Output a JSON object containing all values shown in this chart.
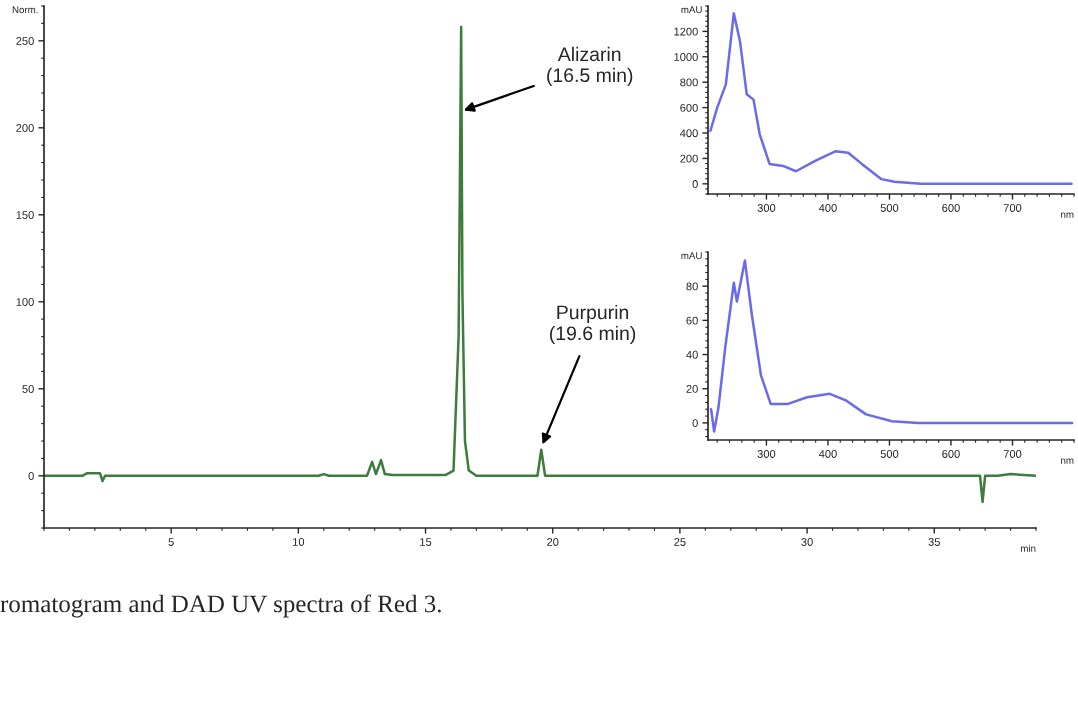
{
  "chart_data": [
    {
      "type": "line",
      "ylabel": "Norm.",
      "xlabel": "min",
      "xlim": [
        0,
        39
      ],
      "ylim": [
        -30,
        270
      ],
      "xticks": [
        5,
        10,
        15,
        20,
        25,
        30,
        35
      ],
      "yticks": [
        0,
        50,
        100,
        150,
        200,
        250
      ],
      "grid": false,
      "legend": false,
      "series": [
        {
          "color": "#3c7d3c",
          "x": [
            0,
            1.5,
            1.7,
            2.2,
            2.3,
            2.4,
            10.8,
            11,
            11.2,
            12.7,
            12.9,
            13.05,
            13.25,
            13.4,
            13.7,
            15.8,
            16.1,
            16.3,
            16.4,
            16.45,
            16.55,
            16.7,
            17,
            19.4,
            19.55,
            19.7,
            36.5,
            36.8,
            36.9,
            37.0,
            37.5,
            38,
            39
          ],
          "values": [
            0,
            0,
            1.5,
            1.5,
            -3,
            0,
            0,
            1,
            0,
            0,
            8,
            1,
            9,
            1,
            0.5,
            0.5,
            3,
            80,
            258,
            105,
            20,
            3,
            0,
            0,
            15,
            0,
            0,
            0,
            -15,
            0,
            0,
            1,
            0
          ]
        }
      ],
      "annotations": [
        {
          "text": "Alizarin\n(16.5 min)",
          "x": 16.5,
          "y": 210
        },
        {
          "text": "Purpurin\n(19.6 min)",
          "x": 19.6,
          "y": 18
        },
        "romatogram and DAD UV spectra of Red 3."
      ]
    },
    {
      "type": "line",
      "ylabel": "mAU",
      "xlabel": "nm",
      "xlim": [
        205,
        800
      ],
      "ylim": [
        -80,
        1400
      ],
      "xticks": [
        300,
        400,
        500,
        600,
        700
      ],
      "yticks": [
        0,
        200,
        400,
        600,
        800,
        1000,
        1200
      ],
      "grid": false,
      "legend": false,
      "series": [
        {
          "color": "#6a6aee",
          "x": [
            209,
            220,
            234,
            247,
            257,
            268,
            279,
            289,
            305,
            327,
            348,
            380,
            412,
            433,
            455,
            487,
            508,
            551,
            796
          ],
          "values": [
            418,
            600,
            783,
            1342,
            1123,
            705,
            663,
            392,
            157,
            141,
            99,
            183,
            256,
            245,
            157,
            37,
            16,
            0,
            0
          ]
        }
      ]
    },
    {
      "type": "line",
      "ylabel": "mAU",
      "xlabel": "nm",
      "xlim": [
        205,
        800
      ],
      "ylim": [
        -10,
        100
      ],
      "xticks": [
        300,
        400,
        500,
        600,
        700
      ],
      "yticks": [
        0,
        20,
        40,
        60,
        80
      ],
      "grid": false,
      "legend": false,
      "series": [
        {
          "color": "#6a6aee",
          "x": [
            210,
            215,
            222,
            233,
            247,
            252,
            265,
            276,
            291,
            307,
            334,
            366,
            403,
            430,
            462,
            504,
            547,
            797
          ],
          "values": [
            8,
            -5,
            9,
            44,
            82,
            71,
            95,
            64,
            28,
            11,
            11,
            15,
            17,
            13,
            5,
            1,
            0,
            0
          ]
        }
      ]
    }
  ]
}
